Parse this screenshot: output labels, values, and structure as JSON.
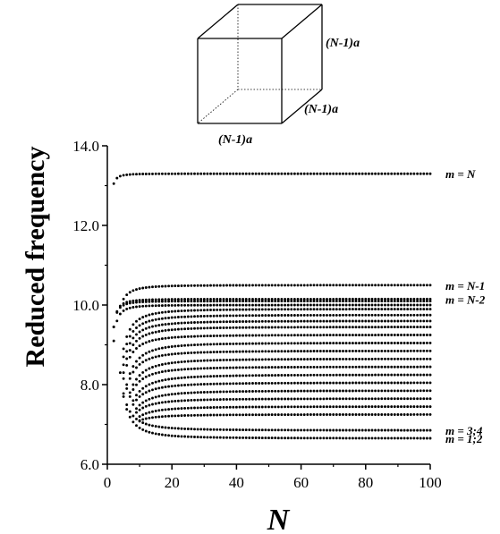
{
  "cube": {
    "label_right": "(N-1)a",
    "label_depth": "(N-1)a",
    "label_bottom": "(N-1)a"
  },
  "chart_data": {
    "type": "scatter",
    "title": "",
    "xlabel": "N",
    "ylabel": "Reduced frequency",
    "xlim": [
      0,
      100
    ],
    "ylim": [
      6.0,
      14.0
    ],
    "xticks": [
      "0",
      "20",
      "40",
      "60",
      "80",
      "100"
    ],
    "yticks": [
      "6.0",
      "8.0",
      "10.0",
      "12.0",
      "14.0"
    ],
    "grid": false,
    "x_sampling": "integer N from 2 to 100",
    "annotations": [
      {
        "text": "m = N",
        "y": 13.3
      },
      {
        "text": "m = N-1",
        "y": 10.5
      },
      {
        "text": "m = N-2",
        "y": 10.15
      },
      {
        "text": "m = 3;4",
        "y": 6.85
      },
      {
        "text": "m = 1;2",
        "y": 6.65
      }
    ],
    "series": [
      {
        "label": "m = N",
        "start_N": 2,
        "y_at_start": 13.05,
        "y_limit": 13.3
      },
      {
        "label": "m = N-1",
        "start_N": 5,
        "y_at_start": 10.15,
        "y_limit": 10.5
      },
      {
        "label": "m = N-2",
        "start_N": 2,
        "y_at_start": 9.45,
        "y_limit": 10.15
      },
      {
        "label": "",
        "start_N": 2,
        "y_at_start": 9.45,
        "y_limit": 10.1
      },
      {
        "label": "",
        "start_N": 2,
        "y_at_start": 9.1,
        "y_limit": 10.0
      },
      {
        "label": "",
        "start_N": 5,
        "y_at_start": 8.9,
        "y_limit": 9.9
      },
      {
        "label": "",
        "start_N": 5,
        "y_at_start": 8.7,
        "y_limit": 9.75
      },
      {
        "label": "",
        "start_N": 5,
        "y_at_start": 8.5,
        "y_limit": 9.6
      },
      {
        "label": "",
        "start_N": 5,
        "y_at_start": 8.3,
        "y_limit": 9.45
      },
      {
        "label": "",
        "start_N": 5,
        "y_at_start": 8.15,
        "y_limit": 9.25
      },
      {
        "label": "",
        "start_N": 6,
        "y_at_start": 8.0,
        "y_limit": 9.05
      },
      {
        "label": "",
        "start_N": 6,
        "y_at_start": 7.9,
        "y_limit": 8.85
      },
      {
        "label": "",
        "start_N": 7,
        "y_at_start": 7.8,
        "y_limit": 8.65
      },
      {
        "label": "",
        "start_N": 7,
        "y_at_start": 7.7,
        "y_limit": 8.45
      },
      {
        "label": "",
        "start_N": 8,
        "y_at_start": 7.6,
        "y_limit": 8.25
      },
      {
        "label": "",
        "start_N": 8,
        "y_at_start": 7.5,
        "y_limit": 8.05
      },
      {
        "label": "",
        "start_N": 9,
        "y_at_start": 7.4,
        "y_limit": 7.85
      },
      {
        "label": "",
        "start_N": 9,
        "y_at_start": 7.3,
        "y_limit": 7.65
      },
      {
        "label": "",
        "start_N": 10,
        "y_at_start": 7.2,
        "y_limit": 7.45
      },
      {
        "label": "",
        "start_N": 10,
        "y_at_start": 7.1,
        "y_limit": 7.25
      },
      {
        "label": "m = 3;4",
        "start_N": 4,
        "y_at_start": 8.3,
        "y_limit": 6.85
      },
      {
        "label": "m = 1;2",
        "start_N": 5,
        "y_at_start": 7.7,
        "y_limit": 6.65
      }
    ]
  }
}
